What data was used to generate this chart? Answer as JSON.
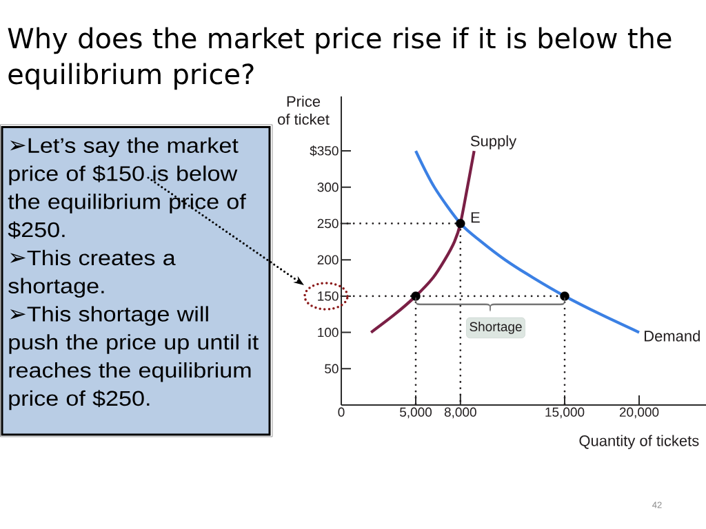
{
  "chart_data": {
    "type": "line",
    "title": "Why does the market price rise if it is below the equilibrium price?",
    "xlabel": "Quantity of tickets",
    "ylabel": "Price of ticket",
    "xlim": [
      0,
      24500
    ],
    "ylim": [
      0,
      425
    ],
    "xticks": [
      {
        "value": 0,
        "label": "0"
      },
      {
        "value": 5000,
        "label": "5,000"
      },
      {
        "value": 8000,
        "label": "8,000"
      },
      {
        "value": 15000,
        "label": "15,000"
      },
      {
        "value": 20000,
        "label": "20,000"
      }
    ],
    "yticks": [
      50,
      100,
      150,
      200,
      250,
      300,
      {
        "value": 350,
        "label": "$350"
      }
    ],
    "series": [
      {
        "line_style": "dotted",
        "color": "#231f20",
        "x": [
          0,
          8000
        ],
        "values": [
          250,
          250
        ]
      },
      {
        "line_style": "dotted",
        "color": "#231f20",
        "x": [
          0,
          15000
        ],
        "values": [
          150,
          150
        ]
      },
      {
        "line_style": "dotted",
        "color": "#231f20",
        "x": [
          5000,
          5000
        ],
        "values": [
          150,
          0
        ]
      },
      {
        "line_style": "dotted",
        "color": "#231f20",
        "x": [
          8000,
          8000
        ],
        "values": [
          250,
          0
        ]
      },
      {
        "line_style": "dotted",
        "color": "#231f20",
        "x": [
          15000,
          15000
        ],
        "values": [
          150,
          0
        ]
      },
      {
        "name": "Supply",
        "color": "#7a1f45",
        "x": [
          2000,
          3600,
          5000,
          6150,
          6950,
          7600,
          8000,
          8470,
          8920
        ],
        "values": [
          100,
          125,
          150,
          175,
          200,
          225,
          250,
          300,
          350
        ]
      },
      {
        "name": "Demand",
        "color": "#3b80e4",
        "x": [
          5000,
          6250,
          8000,
          9400,
          11000,
          12900,
          15000,
          17400,
          20000
        ],
        "values": [
          350,
          300,
          250,
          225,
          200,
          175,
          150,
          125,
          100
        ]
      },
      {
        "type": "scatter",
        "marker": "circle",
        "color": "#000000",
        "x": [
          5000,
          8000,
          15000
        ],
        "values": [
          150,
          250,
          150
        ]
      }
    ],
    "annotations": [
      {
        "text": "E",
        "x": 8000,
        "y": 250
      },
      "Shortage",
      "➢Let’s say the market price of $150 is below the equilibrium price of $250.",
      "➢This creates a shortage.",
      "➢This shortage will push the price up until it reaches the equilibrium price of $250.",
      "42"
    ]
  }
}
